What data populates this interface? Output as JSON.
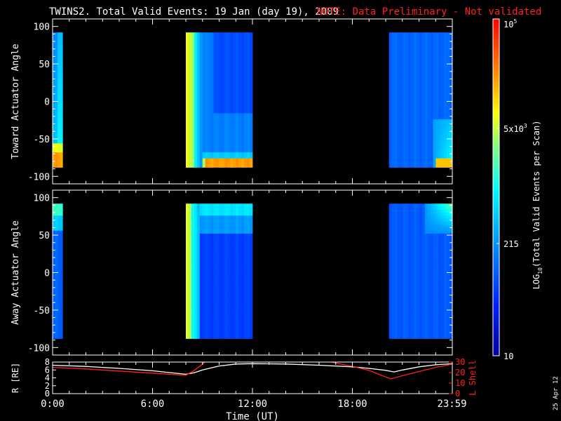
{
  "header": {
    "title": "TWINS2. Total Valid Events: 19 Jan (day  19), 2009",
    "note": "NOTE: Data Preliminary - Not validated"
  },
  "side_stamp": "25 Apr 12",
  "colors": {
    "background": "#000000",
    "axes": "#ffffff",
    "note": "#ff2020",
    "lshell": "#ff2020",
    "radius": "#ffffff"
  },
  "chart_data": [
    {
      "type": "heatmap",
      "name": "toward",
      "ylabel": "Toward Actuator Angle",
      "xlim": [
        0,
        24
      ],
      "ylim": [
        -110,
        110
      ],
      "yticks": [
        100,
        50,
        0,
        -50,
        -100
      ],
      "angle_range": [
        -88,
        92
      ],
      "blocks": [
        {
          "t0": 0.0,
          "t1": 0.6,
          "pattern": "toward-left"
        },
        {
          "t0": 8.0,
          "t1": 12.0,
          "pattern": "toward-mid"
        },
        {
          "t0": 20.2,
          "t1": 24.0,
          "pattern": "toward-right"
        }
      ]
    },
    {
      "type": "heatmap",
      "name": "away",
      "ylabel": "Away Actuator Angle",
      "xlim": [
        0,
        24
      ],
      "ylim": [
        -110,
        110
      ],
      "yticks": [
        100,
        50,
        0,
        -50,
        -100
      ],
      "angle_range": [
        -88,
        92
      ],
      "blocks": [
        {
          "t0": 0.0,
          "t1": 0.6,
          "pattern": "away-left"
        },
        {
          "t0": 8.0,
          "t1": 12.0,
          "pattern": "away-mid"
        },
        {
          "t0": 20.2,
          "t1": 24.0,
          "pattern": "away-right"
        }
      ]
    },
    {
      "type": "line",
      "name": "orbit",
      "ylabel_left": "R [RE]",
      "ylabel_right": "L Shell",
      "xlabel": "Time (UT)",
      "xlim": [
        0,
        24
      ],
      "left_ylim": [
        0,
        8
      ],
      "right_ylim": [
        0,
        30
      ],
      "left_yticks": [
        "8",
        "6",
        "4",
        "2",
        "0"
      ],
      "right_yticks": [
        "30",
        "20",
        "10",
        "0"
      ],
      "xtick_values": [
        0,
        6,
        12,
        18,
        23.98
      ],
      "xtick_labels": [
        "0:00",
        "6:00",
        "12:00",
        "18:00",
        "23:59"
      ],
      "series": [
        {
          "name": "R",
          "axis": "left",
          "x": [
            0,
            2,
            4,
            6,
            8,
            8.5,
            9,
            10,
            11,
            12,
            14,
            16,
            18,
            19,
            20,
            20.5,
            21,
            22,
            23,
            24
          ],
          "y": [
            7.2,
            6.9,
            6.4,
            5.8,
            4.9,
            5.3,
            6.0,
            7.0,
            7.5,
            7.6,
            7.5,
            7.2,
            6.8,
            6.4,
            5.9,
            5.5,
            6.0,
            6.8,
            7.3,
            7.6
          ]
        },
        {
          "name": "L",
          "axis": "right",
          "x": [
            0,
            2,
            4,
            6,
            8.0,
            8.5,
            9.0,
            9.2
          ],
          "y": [
            25,
            23.5,
            21.5,
            19.5,
            17.5,
            22,
            28,
            31
          ]
        },
        {
          "name": "L2",
          "axis": "right",
          "x": [
            16.5,
            17,
            18,
            19,
            20.3,
            21,
            22,
            23,
            24
          ],
          "y": [
            31,
            29,
            26,
            22,
            14,
            17,
            21,
            25,
            28
          ]
        }
      ]
    },
    {
      "type": "colorbar",
      "label": "LOG10(Total Valid Events per Scan)",
      "label_main": "LOG",
      "label_sub": "10",
      "label_rest": "(Total Valid Events per Scan)",
      "scale": "log",
      "range": [
        10,
        100000
      ],
      "ticks": [
        {
          "value": 100000,
          "base": "10",
          "exp": "5"
        },
        {
          "value": 5000,
          "base": "5x10",
          "exp": "3"
        },
        {
          "value": 215,
          "base": "215",
          "exp": ""
        },
        {
          "value": 10,
          "base": "10",
          "exp": ""
        }
      ]
    }
  ]
}
